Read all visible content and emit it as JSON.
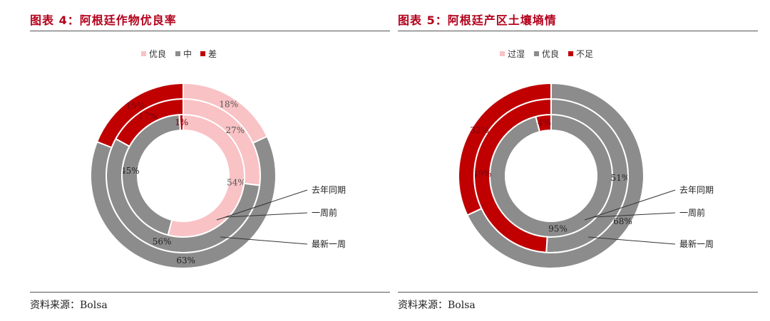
{
  "panels": [
    {
      "title": "图表 4：阿根廷作物优良率",
      "source_label": "资料来源：",
      "source_value": "Bolsa"
    },
    {
      "title": "图表 5：阿根廷产区土壤墒情",
      "source_label": "资料来源：",
      "source_value": "Bolsa"
    }
  ],
  "chart_data": [
    {
      "type": "donut",
      "title": "",
      "legend_position": "top",
      "categories": [
        "优良",
        "中",
        "差"
      ],
      "colors": [
        "#f9c2c5",
        "#8c8c8c",
        "#c00000"
      ],
      "rings": [
        {
          "name": "去年同期",
          "values": [
            54,
            45,
            1
          ]
        },
        {
          "name": "一周前",
          "values": [
            27,
            56,
            17
          ]
        },
        {
          "name": "最新一周",
          "values": [
            18,
            63,
            19
          ]
        }
      ],
      "ring_callouts": [
        "去年同期",
        "一周前",
        "最新一周"
      ]
    },
    {
      "type": "donut",
      "title": "",
      "legend_position": "top",
      "categories": [
        "过湿",
        "优良",
        "不足"
      ],
      "colors": [
        "#f9c2c5",
        "#8c8c8c",
        "#c00000"
      ],
      "rings": [
        {
          "name": "去年同期",
          "values": [
            0,
            95,
            4
          ]
        },
        {
          "name": "一周前",
          "values": [
            0,
            51,
            49
          ]
        },
        {
          "name": "最新一周",
          "values": [
            0,
            68,
            32
          ]
        }
      ],
      "ring_callouts": [
        "去年同期",
        "一周前",
        "最新一周"
      ]
    }
  ]
}
